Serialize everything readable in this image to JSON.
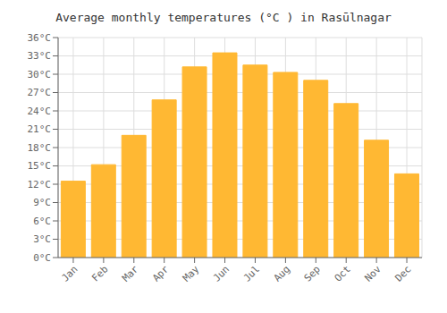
{
  "chart_data": {
    "type": "bar",
    "title": "Average monthly temperatures (°C ) in Rasūlnagar",
    "categories": [
      "Jan",
      "Feb",
      "Mar",
      "Apr",
      "May",
      "Jun",
      "Jul",
      "Aug",
      "Sep",
      "Oct",
      "Nov",
      "Dec"
    ],
    "values": [
      12.5,
      15.2,
      20.0,
      25.8,
      31.2,
      33.5,
      31.5,
      30.3,
      29.0,
      25.2,
      19.2,
      13.7
    ],
    "color": "#FFB833",
    "ylim": [
      0,
      36
    ],
    "yticks": [
      {
        "value": 0,
        "label": "0°C"
      },
      {
        "value": 3,
        "label": "3°C"
      },
      {
        "value": 6,
        "label": "6°C"
      },
      {
        "value": 9,
        "label": "9°C"
      },
      {
        "value": 12,
        "label": "12°C"
      },
      {
        "value": 15,
        "label": "15°C"
      },
      {
        "value": 18,
        "label": "18°C"
      },
      {
        "value": 21,
        "label": "21°C"
      },
      {
        "value": 24,
        "label": "24°C"
      },
      {
        "value": 27,
        "label": "27°C"
      },
      {
        "value": 30,
        "label": "30°C"
      },
      {
        "value": 33,
        "label": "33°C"
      },
      {
        "value": 36,
        "label": "36°C"
      }
    ],
    "grid": true
  }
}
